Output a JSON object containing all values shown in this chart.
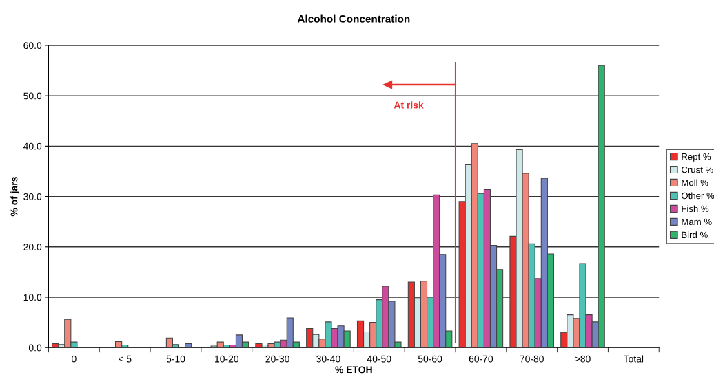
{
  "chart_data": {
    "type": "bar",
    "title": "Alcohol Concentration",
    "xlabel": "% ETOH",
    "ylabel": "% of jars",
    "categories": [
      "0",
      "< 5",
      "5-10",
      "10-20",
      "20-30",
      "30-40",
      "40-50",
      "50-60",
      "60-70",
      "70-80",
      ">80",
      "Total"
    ],
    "series": [
      {
        "name": "Rept %",
        "color": "#e8312f",
        "values": [
          0.8,
          null,
          null,
          null,
          0.8,
          3.8,
          5.3,
          13.0,
          29.0,
          22.1,
          3.0,
          null
        ]
      },
      {
        "name": "Crust %",
        "color": "#cfe9ea",
        "values": [
          0.6,
          null,
          null,
          0.3,
          0.5,
          2.6,
          3.1,
          9.9,
          36.3,
          39.3,
          6.5,
          null
        ]
      },
      {
        "name": "Moll %",
        "color": "#f0857a",
        "values": [
          5.6,
          1.2,
          1.9,
          1.1,
          0.8,
          1.7,
          5.0,
          13.2,
          40.5,
          34.6,
          5.8,
          null
        ]
      },
      {
        "name": "Other %",
        "color": "#4fc1b5",
        "values": [
          1.1,
          0.5,
          0.6,
          0.5,
          1.1,
          5.1,
          9.5,
          10.0,
          30.6,
          20.6,
          16.7,
          null
        ]
      },
      {
        "name": "Fish %",
        "color": "#cc4b9c",
        "values": [
          null,
          null,
          null,
          0.5,
          1.5,
          3.8,
          12.2,
          30.3,
          31.4,
          13.7,
          6.5,
          null
        ]
      },
      {
        "name": "Mam %",
        "color": "#7585c4",
        "values": [
          null,
          null,
          0.8,
          2.5,
          5.9,
          4.3,
          9.2,
          18.5,
          20.3,
          33.6,
          5.1,
          null
        ]
      },
      {
        "name": "Bird %",
        "color": "#2fb36f",
        "values": [
          null,
          null,
          null,
          1.1,
          1.1,
          3.3,
          1.1,
          3.3,
          15.5,
          18.6,
          56.0,
          null
        ]
      }
    ],
    "ylim": [
      0,
      60
    ],
    "yticks": [
      {
        "value": 0,
        "label": "0.0"
      },
      {
        "value": 10,
        "label": "10.0"
      },
      {
        "value": 20,
        "label": "20.0"
      },
      {
        "value": 30,
        "label": "30.0"
      },
      {
        "value": 40,
        "label": "40.0"
      },
      {
        "value": 50,
        "label": "50.0"
      },
      {
        "value": 60,
        "label": "60.0"
      }
    ],
    "grid": "y",
    "legend": "right",
    "annotations": [
      "At risk"
    ]
  }
}
